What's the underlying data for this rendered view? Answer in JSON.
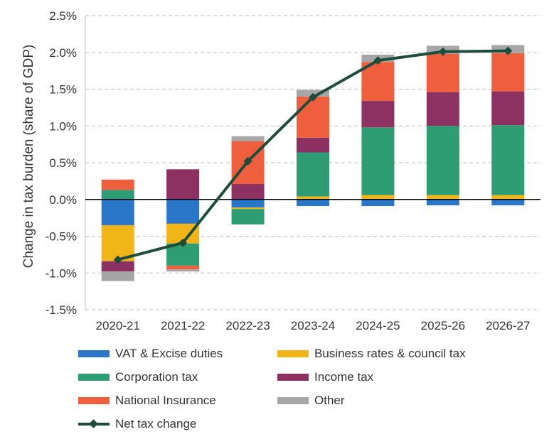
{
  "chart_data": {
    "type": "bar",
    "stacked": true,
    "categories": [
      "2020-21",
      "2021-22",
      "2022-23",
      "2023-24",
      "2024-25",
      "2025-26",
      "2026-27"
    ],
    "ylabel": "Change in tax burden (share of GDP)",
    "ylim": [
      -1.5,
      2.5
    ],
    "yticks": [
      -1.5,
      -1.0,
      -0.5,
      0.0,
      0.5,
      1.0,
      1.5,
      2.0,
      2.5
    ],
    "ytick_labels": [
      "-1.5%",
      "-1.0%",
      "-0.5%",
      "0.0%",
      "0.5%",
      "1.0%",
      "1.5%",
      "2.0%",
      "2.5%"
    ],
    "grid": true,
    "legend_position": "bottom",
    "series": [
      {
        "name": "VAT & Excise duties",
        "color": "#2a77c9",
        "values": [
          -0.35,
          -0.33,
          -0.11,
          -0.09,
          -0.09,
          -0.08,
          -0.08
        ]
      },
      {
        "name": "Business rates & council tax",
        "color": "#f2b518",
        "values": [
          -0.49,
          -0.27,
          -0.02,
          0.04,
          0.06,
          0.06,
          0.06
        ]
      },
      {
        "name": "Corporation tax",
        "color": "#2e9d73",
        "values": [
          0.13,
          -0.3,
          -0.21,
          0.6,
          0.92,
          0.94,
          0.95
        ]
      },
      {
        "name": "Income tax",
        "color": "#8c3162",
        "values": [
          -0.14,
          0.41,
          0.21,
          0.2,
          0.36,
          0.46,
          0.46
        ]
      },
      {
        "name": "National Insurance",
        "color": "#ef5f3e",
        "values": [
          0.14,
          -0.05,
          0.58,
          0.56,
          0.53,
          0.52,
          0.52
        ]
      },
      {
        "name": "Other",
        "color": "#a6a6a6",
        "values": [
          -0.13,
          -0.03,
          0.07,
          0.09,
          0.1,
          0.11,
          0.11
        ]
      }
    ],
    "line_series": {
      "name": "Net tax change",
      "color": "#1e4d3c",
      "values": [
        -0.82,
        -0.59,
        0.52,
        1.39,
        1.89,
        2.01,
        2.02
      ]
    }
  }
}
